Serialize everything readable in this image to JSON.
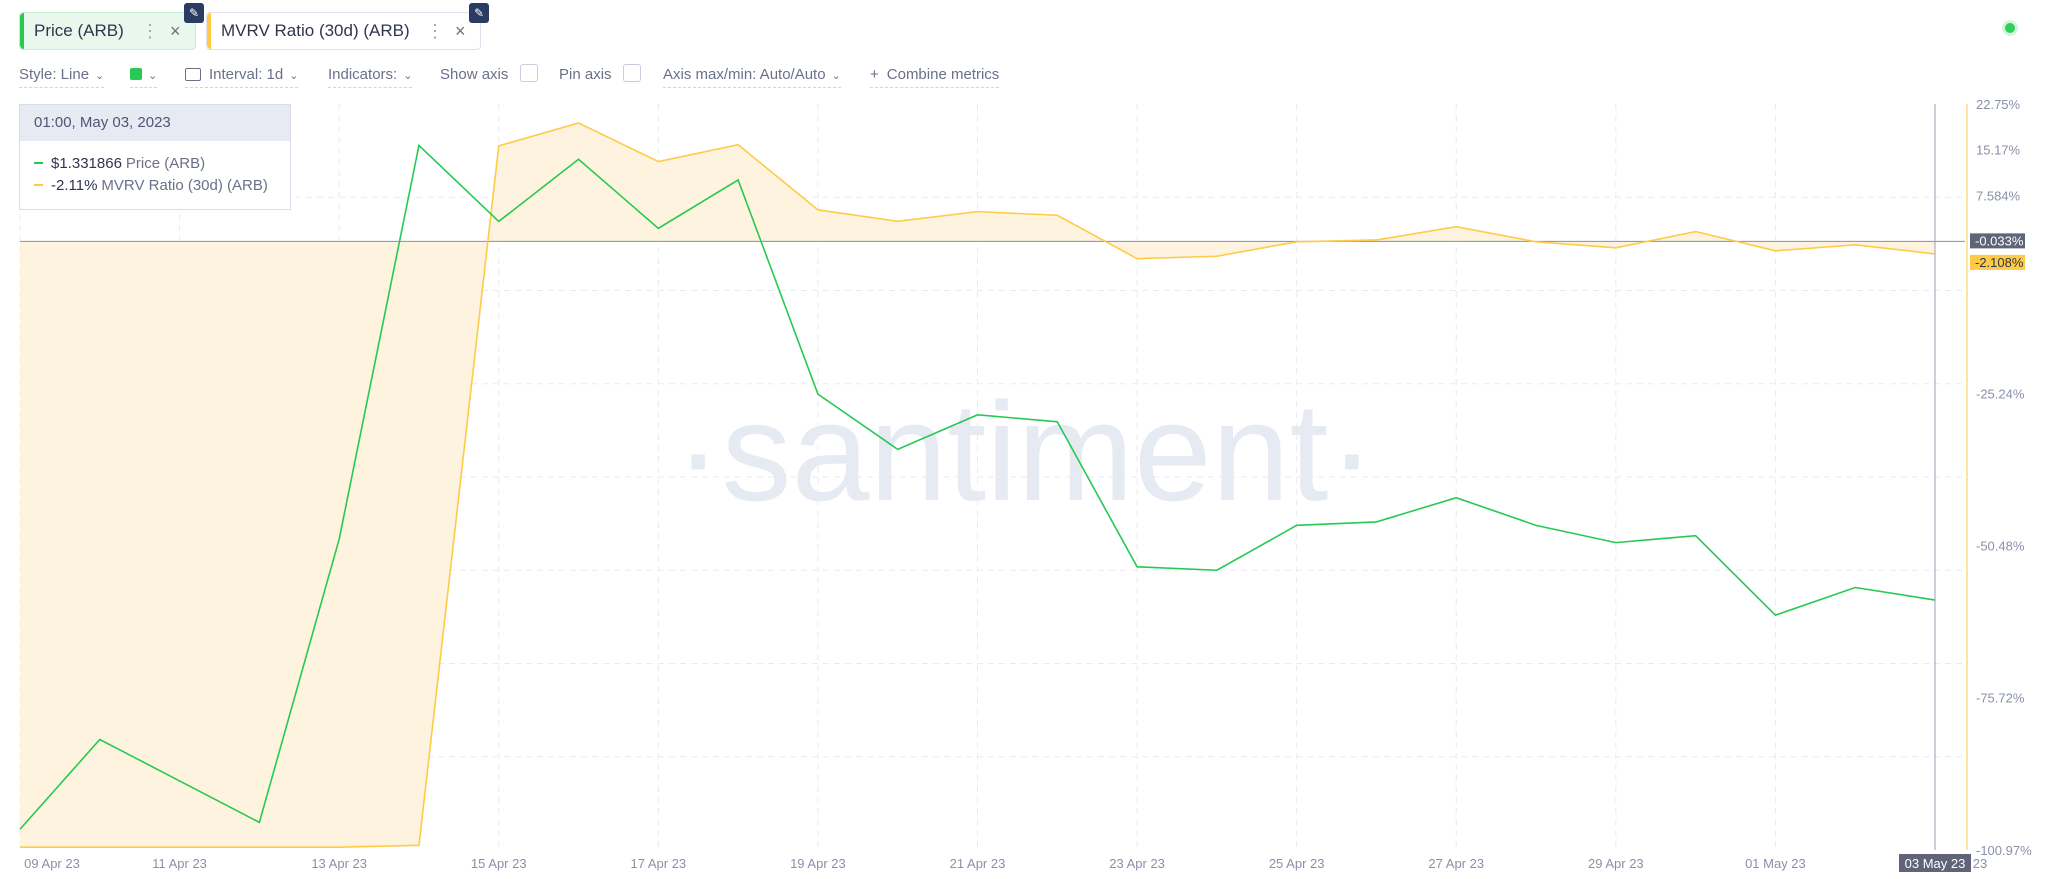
{
  "header": {
    "metrics": [
      {
        "label": "Price (ARB)",
        "color": "#26c953",
        "badge": "logo-icon"
      },
      {
        "label": "MVRV Ratio (30d) (ARB)",
        "color": "#ffcb47",
        "badge": "logo-icon"
      }
    ],
    "menu_icon": "⋮",
    "close_icon": "×"
  },
  "settings": {
    "style_label": "Style: Line",
    "interval_label": "Interval: 1d",
    "indicators_label": "Indicators:",
    "show_axis_label": "Show axis",
    "pin_axis_label": "Pin axis",
    "axis_minmax_label": "Axis max/min: Auto/Auto",
    "combine_label": "Combine metrics",
    "combine_icon": "+"
  },
  "tooltip": {
    "date": "01:00, May 03, 2023",
    "rows": [
      {
        "value": "$1.331866",
        "name": "Price (ARB)",
        "color": "#26c953"
      },
      {
        "value": "-2.11%",
        "name": "MVRV Ratio (30d) (ARB)",
        "color": "#ffcb47"
      }
    ]
  },
  "watermark": "·santiment·",
  "chart_data": {
    "type": "line",
    "x": [
      "2023-04-09",
      "2023-04-10",
      "2023-04-11",
      "2023-04-12",
      "2023-04-13",
      "2023-04-14",
      "2023-04-15",
      "2023-04-16",
      "2023-04-17",
      "2023-04-18",
      "2023-04-19",
      "2023-04-20",
      "2023-04-21",
      "2023-04-22",
      "2023-04-23",
      "2023-04-24",
      "2023-04-25",
      "2023-04-26",
      "2023-04-27",
      "2023-04-28",
      "2023-04-29",
      "2023-04-30",
      "2023-05-01",
      "2023-05-02",
      "2023-05-03"
    ],
    "x_tick_labels": [
      "09 Apr 23",
      "11 Apr 23",
      "13 Apr 23",
      "15 Apr 23",
      "17 Apr 23",
      "19 Apr 23",
      "21 Apr 23",
      "23 Apr 23",
      "25 Apr 23",
      "27 Apr 23",
      "29 Apr 23",
      "01 May 23",
      "03 May 23"
    ],
    "x_highlight_label": "03 May 23",
    "x_trailing_label": "23",
    "series": [
      {
        "name": "MVRV Ratio (30d) (ARB)",
        "color": "#ffcb47",
        "fill": "#fdf3df",
        "axis": "right",
        "values": [
          -100.5,
          -100.5,
          -100.5,
          -100.5,
          -100.5,
          -100.2,
          15.8,
          19.6,
          13.2,
          16.0,
          5.2,
          3.3,
          4.9,
          4.3,
          -2.9,
          -2.5,
          -0.1,
          0.2,
          2.4,
          -0.1,
          -1.1,
          1.6,
          -1.6,
          -0.6,
          -2.11
        ]
      },
      {
        "name": "Price (ARB)",
        "color": "#26c953",
        "axis": "hidden",
        "values": [
          1.0,
          1.13,
          1.07,
          1.01,
          1.42,
          1.99,
          1.88,
          1.97,
          1.87,
          1.94,
          1.63,
          1.55,
          1.6,
          1.59,
          1.38,
          1.375,
          1.44,
          1.445,
          1.48,
          1.44,
          1.415,
          1.425,
          1.31,
          1.35,
          1.331866
        ]
      }
    ],
    "y_right_ticks": [
      22.75,
      15.17,
      7.584,
      -25.24,
      -50.48,
      -75.72,
      -100.97
    ],
    "y_right_tick_labels": [
      "22.75%",
      "15.17%",
      "7.584%",
      "-25.24%",
      "-50.48%",
      "-75.72%",
      "-100.97%"
    ],
    "ylim": [
      -100.97,
      22.75
    ],
    "price_range": [
      0.97,
      2.05
    ],
    "reference_line": {
      "value": -0.033,
      "label": "-0.033%"
    },
    "current_value_label": "-2.108%",
    "grid": true,
    "legend": "top-left tooltip"
  }
}
